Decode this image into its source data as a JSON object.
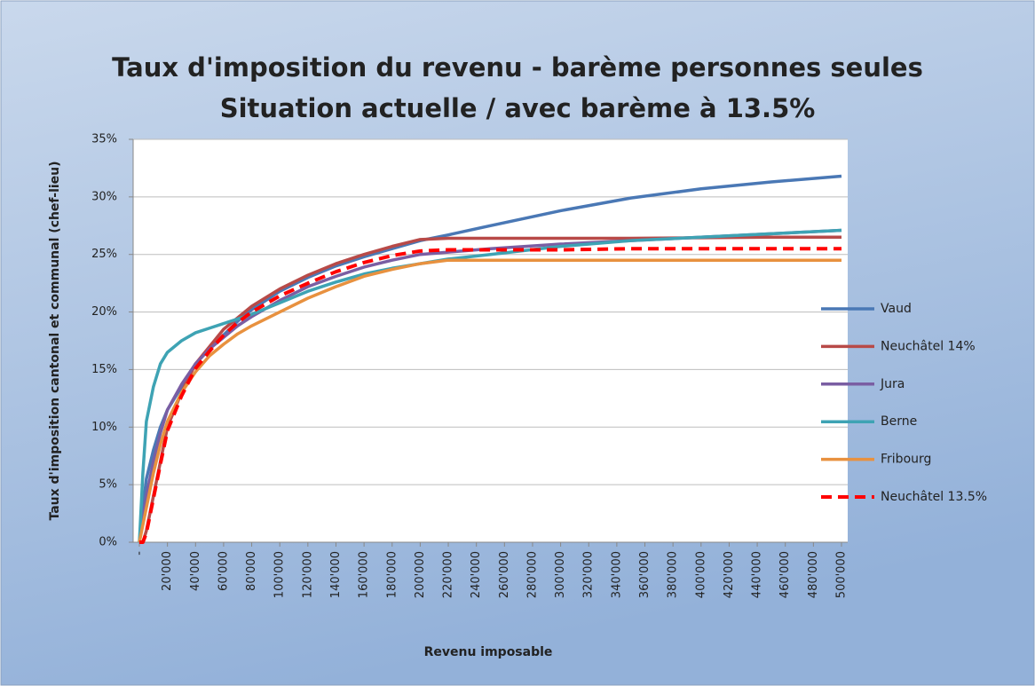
{
  "chart_data": {
    "type": "line",
    "title": "Taux d'imposition du revenu - barème personnes seules",
    "subtitle": "Situation actuelle / avec barème à 13.5%",
    "x_label": "Revenu imposable",
    "y_label": "Taux d'imposition cantonal et communal (chef-lieu)",
    "x": [
      0,
      2500,
      5000,
      10000,
      15000,
      20000,
      30000,
      40000,
      50000,
      60000,
      70000,
      80000,
      100000,
      120000,
      140000,
      160000,
      180000,
      200000,
      220000,
      250000,
      300000,
      350000,
      400000,
      450000,
      500000
    ],
    "xlim": [
      0,
      500000
    ],
    "xticks": [
      {
        "value": 0,
        "label": "-"
      },
      {
        "value": 20000,
        "label": "20'000"
      },
      {
        "value": 40000,
        "label": "40'000"
      },
      {
        "value": 60000,
        "label": "60'000"
      },
      {
        "value": 80000,
        "label": "80'000"
      },
      {
        "value": 100000,
        "label": "100'000"
      },
      {
        "value": 120000,
        "label": "120'000"
      },
      {
        "value": 140000,
        "label": "140'000"
      },
      {
        "value": 160000,
        "label": "160'000"
      },
      {
        "value": 180000,
        "label": "180'000"
      },
      {
        "value": 200000,
        "label": "200'000"
      },
      {
        "value": 220000,
        "label": "220'000"
      },
      {
        "value": 240000,
        "label": "240'000"
      },
      {
        "value": 260000,
        "label": "260'000"
      },
      {
        "value": 280000,
        "label": "280'000"
      },
      {
        "value": 300000,
        "label": "300'000"
      },
      {
        "value": 320000,
        "label": "320'000"
      },
      {
        "value": 340000,
        "label": "340'000"
      },
      {
        "value": 360000,
        "label": "360'000"
      },
      {
        "value": 380000,
        "label": "380'000"
      },
      {
        "value": 400000,
        "label": "400'000"
      },
      {
        "value": 420000,
        "label": "420'000"
      },
      {
        "value": 440000,
        "label": "440'000"
      },
      {
        "value": 460000,
        "label": "460'000"
      },
      {
        "value": 480000,
        "label": "480'000"
      },
      {
        "value": 500000,
        "label": "500'000"
      }
    ],
    "ylim": [
      0,
      35
    ],
    "yticks": [
      {
        "value": 0,
        "label": "0%"
      },
      {
        "value": 5,
        "label": "5%"
      },
      {
        "value": 10,
        "label": "10%"
      },
      {
        "value": 15,
        "label": "15%"
      },
      {
        "value": 20,
        "label": "20%"
      },
      {
        "value": 25,
        "label": "25%"
      },
      {
        "value": 30,
        "label": "30%"
      },
      {
        "value": 35,
        "label": "35%"
      }
    ],
    "grid": true,
    "legend": "right",
    "series": [
      {
        "name": "Vaud",
        "color": "#4a78b5",
        "dashed": false,
        "values": [
          0,
          3,
          5.5,
          8,
          10,
          11.5,
          13.5,
          15.5,
          16.8,
          18,
          19.2,
          20.2,
          21.8,
          23,
          24,
          24.8,
          25.5,
          26.2,
          26.7,
          27.5,
          28.8,
          29.9,
          30.7,
          31.3,
          31.8
        ]
      },
      {
        "name": "Neuchâtel 14%",
        "color": "#b84a48",
        "dashed": false,
        "values": [
          0,
          0,
          1,
          4,
          7,
          10,
          13,
          15.5,
          17,
          18.5,
          19.5,
          20.5,
          22,
          23.2,
          24.2,
          25,
          25.7,
          26.3,
          26.4,
          26.4,
          26.4,
          26.4,
          26.45,
          26.5,
          26.5
        ]
      },
      {
        "name": "Jura",
        "color": "#7a5ea3",
        "dashed": false,
        "values": [
          0,
          2,
          4,
          7,
          9.5,
          11.5,
          13.7,
          15.5,
          16.8,
          17.8,
          18.8,
          19.6,
          21,
          22.2,
          23.1,
          23.9,
          24.5,
          25,
          25.2,
          25.5,
          25.9,
          26.2,
          26.5,
          26.8,
          27.1
        ]
      },
      {
        "name": "Berne",
        "color": "#3ea3b4",
        "dashed": false,
        "values": [
          0,
          6,
          10.5,
          13.5,
          15.5,
          16.5,
          17.5,
          18.2,
          18.6,
          19,
          19.4,
          19.8,
          20.8,
          21.8,
          22.6,
          23.3,
          23.8,
          24.2,
          24.6,
          25,
          25.7,
          26.2,
          26.5,
          26.8,
          27.1
        ]
      },
      {
        "name": "Fribourg",
        "color": "#e8913f",
        "dashed": false,
        "values": [
          0,
          1.5,
          3,
          6,
          8.5,
          10.5,
          13,
          14.8,
          16.2,
          17.2,
          18.1,
          18.8,
          20,
          21.2,
          22.2,
          23.1,
          23.7,
          24.2,
          24.5,
          24.5,
          24.5,
          24.5,
          24.5,
          24.5,
          24.5
        ]
      },
      {
        "name": "Neuchâtel 13.5%",
        "color": "#ff0000",
        "dashed": true,
        "values": [
          0,
          0,
          0.8,
          3.8,
          6.8,
          9.7,
          12.7,
          15.1,
          16.6,
          18,
          19.1,
          20,
          21.4,
          22.5,
          23.5,
          24.3,
          24.9,
          25.3,
          25.4,
          25.4,
          25.4,
          25.5,
          25.5,
          25.5,
          25.5
        ]
      }
    ]
  }
}
